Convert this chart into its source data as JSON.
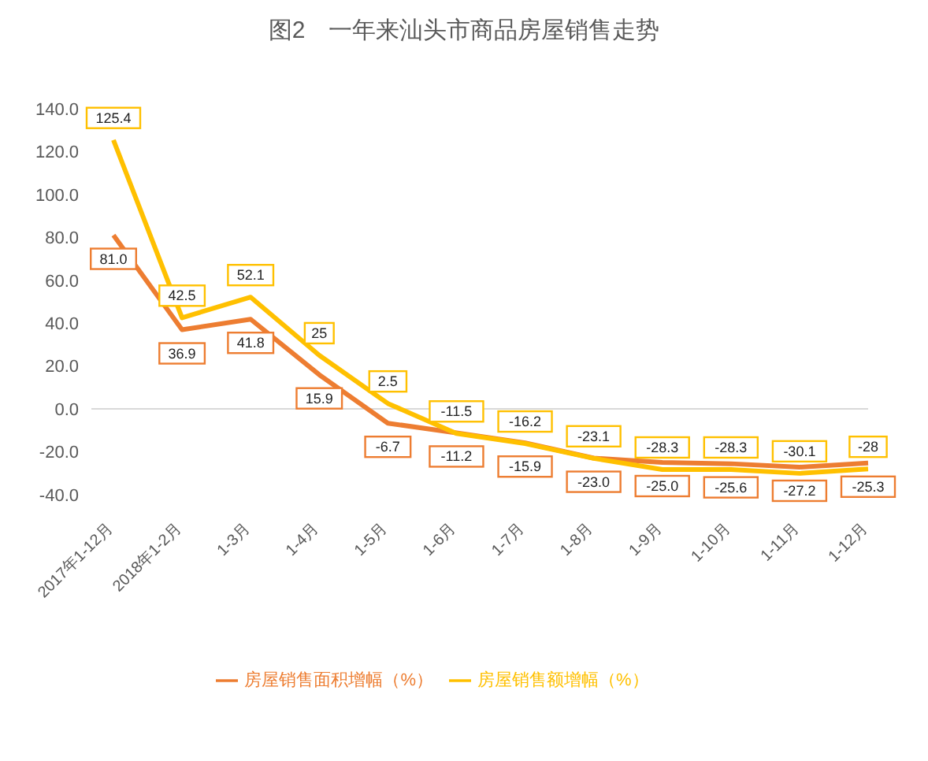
{
  "chart_data": {
    "type": "line",
    "title": "图2　一年来汕头市商品房屋销售走势",
    "categories": [
      "2017年1-12月",
      "2018年1-2月",
      "1-3月",
      "1-4月",
      "1-5月",
      "1-6月",
      "1-7月",
      "1-8月",
      "1-9月",
      "1-10月",
      "1-11月",
      "1-12月"
    ],
    "series": [
      {
        "name": "房屋销售面积增幅（%）",
        "color": "#ed7d31",
        "values": [
          81.0,
          36.9,
          41.8,
          15.9,
          -6.7,
          -11.2,
          -15.9,
          -23.0,
          -25.0,
          -25.6,
          -27.2,
          -25.3
        ],
        "value_labels": [
          "81.0",
          "36.9",
          "41.8",
          "15.9",
          "-6.7",
          "-11.2",
          "-15.9",
          "-23.0",
          "-25.0",
          "-25.6",
          "-27.2",
          "-25.3"
        ]
      },
      {
        "name": "房屋销售额增幅（%）",
        "color": "#ffc000",
        "values": [
          125.4,
          42.5,
          52.1,
          25,
          2.5,
          -11.5,
          -16.2,
          -23.1,
          -28.3,
          -28.3,
          -30.1,
          -28
        ],
        "value_labels": [
          "125.4",
          "42.5",
          "52.1",
          "25",
          "2.5",
          "-11.5",
          "-16.2",
          "-23.1",
          "-28.3",
          "-28.3",
          "-30.1",
          "-28"
        ]
      }
    ],
    "ylim": [
      -40,
      140
    ],
    "yticks": [
      {
        "value": -40,
        "label": "-40.0"
      },
      {
        "value": -20,
        "label": "-20.0"
      },
      {
        "value": 0,
        "label": "0.0"
      },
      {
        "value": 20,
        "label": "20.0"
      },
      {
        "value": 40,
        "label": "40.0"
      },
      {
        "value": 60,
        "label": "60.0"
      },
      {
        "value": 80,
        "label": "80.0"
      },
      {
        "value": 100,
        "label": "100.0"
      },
      {
        "value": 120,
        "label": "120.0"
      },
      {
        "value": 140,
        "label": "140.0"
      }
    ],
    "ref_lines": [
      {
        "axis": "y",
        "value": 0,
        "color": "#d9d9d9"
      }
    ],
    "grid": false,
    "legend": "bottom",
    "marker": "none",
    "line_style": "solid"
  }
}
